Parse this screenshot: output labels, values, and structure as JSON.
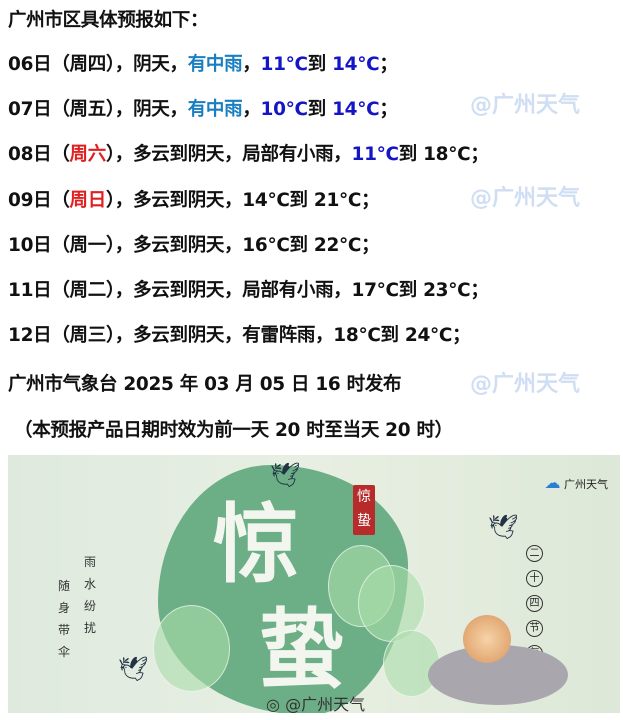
{
  "heading": "广州市区具体预报如下：",
  "colors": {
    "text": "#111111",
    "rain": "#1a7fc1",
    "temp_blue": "#1515c8",
    "weekend": "#e02020"
  },
  "forecast": [
    [
      {
        "t": "06日（周四），阴天，"
      },
      {
        "t": "有中雨",
        "c": "rain"
      },
      {
        "t": "，"
      },
      {
        "t": "11℃",
        "c": "temp_blue"
      },
      {
        "t": "到 "
      },
      {
        "t": "14℃",
        "c": "temp_blue"
      },
      {
        "t": "；"
      }
    ],
    [
      {
        "t": "07日（周五），阴天，"
      },
      {
        "t": "有中雨",
        "c": "rain"
      },
      {
        "t": "，"
      },
      {
        "t": "10℃",
        "c": "temp_blue"
      },
      {
        "t": "到 "
      },
      {
        "t": "14℃",
        "c": "temp_blue"
      },
      {
        "t": "；"
      }
    ],
    [
      {
        "t": "08日（"
      },
      {
        "t": "周六",
        "c": "weekend"
      },
      {
        "t": "），多云到阴天，局部有小雨，"
      },
      {
        "t": "11℃",
        "c": "temp_blue"
      },
      {
        "t": "到 18℃；"
      }
    ],
    [
      {
        "t": "09日（"
      },
      {
        "t": "周日",
        "c": "weekend"
      },
      {
        "t": "），多云到阴天，14℃到 21℃；"
      }
    ],
    [
      {
        "t": "10日（周一），多云到阴天，16℃到 22℃；"
      }
    ],
    [
      {
        "t": "11日（周二），多云到阴天，局部有小雨，17℃到 23℃；"
      }
    ],
    [
      {
        "t": "12日（周三），多云到阴天，有雷阵雨，18℃到 24℃；"
      }
    ]
  ],
  "issued": "广州市气象台 2025 年 03 月 05 日 16 时发布",
  "note": "（本预报产品日期时效为前一天 20 时至当天 20 时）",
  "watermark": "@广州天气",
  "banner": {
    "title_1": "惊",
    "title_2": "蛰",
    "seal": "惊蛰",
    "poem_col1": "雨水纷扰",
    "poem_col2": "随身带伞",
    "series": [
      "二",
      "十",
      "四",
      "节",
      "气"
    ],
    "logo": "广州天气",
    "weibo": "@广州天气"
  }
}
